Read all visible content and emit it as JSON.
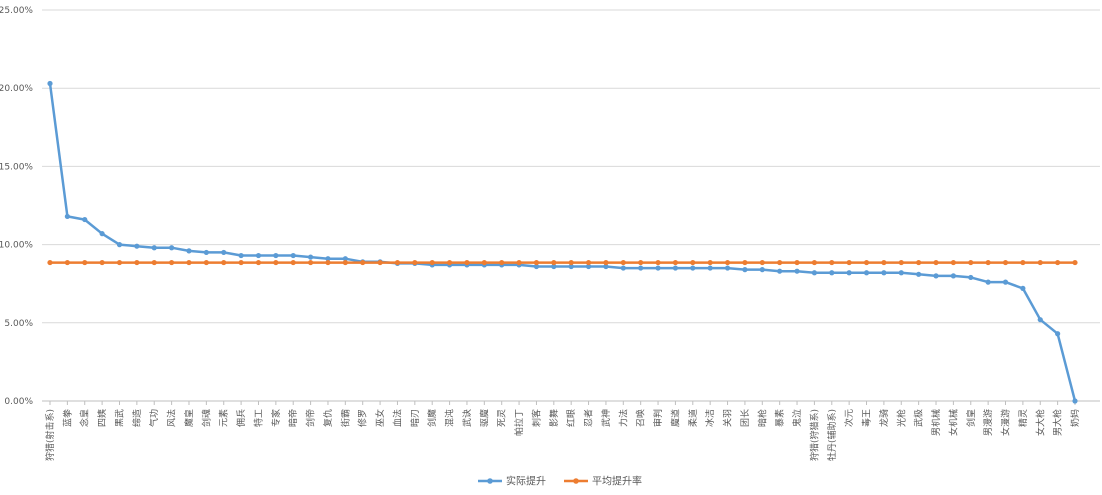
{
  "chart_data": {
    "type": "line",
    "title": "",
    "xlabel": "",
    "ylabel": "",
    "ylim": [
      0,
      0.25
    ],
    "ytick_labels": [
      "0.00%",
      "5.00%",
      "10.00%",
      "15.00%",
      "20.00%",
      "25.00%"
    ],
    "grid": true,
    "legend_position": "bottom",
    "categories": [
      "狩猎(射击系)",
      "蓝拳",
      "念皇",
      "四姨",
      "黑武",
      "缔造",
      "气功",
      "风法",
      "魔皇",
      "剑魂",
      "元素",
      "佣兵",
      "特工",
      "专家",
      "暗帝",
      "剑帝",
      "复仇",
      "街霸",
      "修罗",
      "巫女",
      "血法",
      "暗刃",
      "剑魔",
      "混沌",
      "武诀",
      "驱魔",
      "死灵",
      "帕拉丁",
      "刺客",
      "影舞",
      "红眼",
      "忍者",
      "武神",
      "力法",
      "召唤",
      "审判",
      "魔道",
      "柔道",
      "冰洁",
      "关羽",
      "团长",
      "暗枪",
      "暴素",
      "鬼泣",
      "狩猎(狩猎系)",
      "牡丹(辅助系)",
      "次元",
      "毒王",
      "龙骑",
      "光枪",
      "武极",
      "男机械",
      "女机械",
      "剑皇",
      "男漫游",
      "女漫游",
      "精灵",
      "女大枪",
      "男大枪",
      "奶妈"
    ],
    "series": [
      {
        "name": "实际提升",
        "color": "#5b9bd5",
        "values": [
          0.203,
          0.118,
          0.116,
          0.107,
          0.1,
          0.099,
          0.098,
          0.098,
          0.096,
          0.095,
          0.095,
          0.093,
          0.093,
          0.093,
          0.093,
          0.092,
          0.091,
          0.091,
          0.089,
          0.089,
          0.088,
          0.088,
          0.087,
          0.087,
          0.087,
          0.087,
          0.087,
          0.087,
          0.086,
          0.086,
          0.086,
          0.086,
          0.086,
          0.085,
          0.085,
          0.085,
          0.085,
          0.085,
          0.085,
          0.085,
          0.084,
          0.084,
          0.083,
          0.083,
          0.082,
          0.082,
          0.082,
          0.082,
          0.082,
          0.082,
          0.081,
          0.08,
          0.08,
          0.079,
          0.076,
          0.076,
          0.072,
          0.052,
          0.043,
          0.0
        ]
      },
      {
        "name": "平均提升率",
        "color": "#ed7d31",
        "values": [
          0.0885,
          0.0885,
          0.0885,
          0.0885,
          0.0885,
          0.0885,
          0.0885,
          0.0885,
          0.0885,
          0.0885,
          0.0885,
          0.0885,
          0.0885,
          0.0885,
          0.0885,
          0.0885,
          0.0885,
          0.0885,
          0.0885,
          0.0885,
          0.0885,
          0.0885,
          0.0885,
          0.0885,
          0.0885,
          0.0885,
          0.0885,
          0.0885,
          0.0885,
          0.0885,
          0.0885,
          0.0885,
          0.0885,
          0.0885,
          0.0885,
          0.0885,
          0.0885,
          0.0885,
          0.0885,
          0.0885,
          0.0885,
          0.0885,
          0.0885,
          0.0885,
          0.0885,
          0.0885,
          0.0885,
          0.0885,
          0.0885,
          0.0885,
          0.0885,
          0.0885,
          0.0885,
          0.0885,
          0.0885,
          0.0885,
          0.0885,
          0.0885,
          0.0885,
          0.0885
        ]
      }
    ]
  }
}
